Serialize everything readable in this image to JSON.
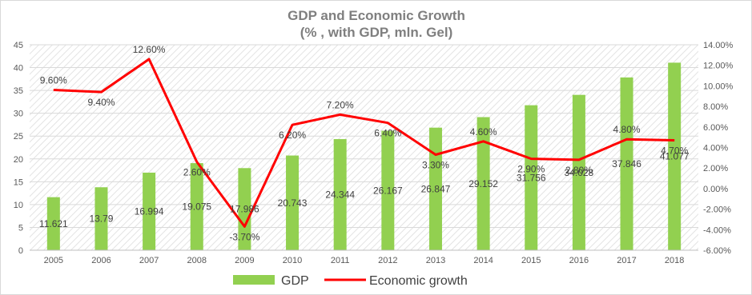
{
  "chart_data": {
    "type": "bar+line",
    "title_lines": [
      "GDP and Economic Growth",
      "(% , with GDP, mln. Gel)"
    ],
    "xlabel": "",
    "ylabel": "",
    "categories": [
      "2005",
      "2006",
      "2007",
      "2008",
      "2009",
      "2010",
      "2011",
      "2012",
      "2013",
      "2014",
      "2015",
      "2016",
      "2017",
      "2018"
    ],
    "series": [
      {
        "name": "GDP",
        "type": "bar",
        "axis": "left",
        "color": "#92d050",
        "values": [
          11.621,
          13.79,
          16.994,
          19.075,
          17.986,
          20.743,
          24.344,
          26.167,
          26.847,
          29.152,
          31.756,
          34.028,
          37.846,
          41.077
        ],
        "labels": [
          "11.621",
          "13.79",
          "16.994",
          "19.075",
          "17.986",
          "20.743",
          "24.344",
          "26.167",
          "26.847",
          "29.152",
          "31.756",
          "34.028",
          "37.846",
          "41.077"
        ]
      },
      {
        "name": "Economic growth",
        "type": "line",
        "axis": "right",
        "color": "#ff0000",
        "values": [
          9.6,
          9.4,
          12.6,
          2.6,
          -3.7,
          6.2,
          7.2,
          6.4,
          3.3,
          4.6,
          2.9,
          2.8,
          4.8,
          4.7
        ],
        "labels": [
          "9.60%",
          "9.40%",
          "12.60%",
          "2.60%",
          "-3.70%",
          "6.20%",
          "7.20%",
          "6.40%",
          "3.30%",
          "4.60%",
          "2.90%",
          "2.80%",
          "4.80%",
          "4.70%"
        ]
      }
    ],
    "y_left": {
      "range": [
        0,
        45
      ],
      "ticks": [
        0,
        5,
        10,
        15,
        20,
        25,
        30,
        35,
        40,
        45
      ],
      "tick_labels": [
        "0",
        "5",
        "10",
        "15",
        "20",
        "25",
        "30",
        "35",
        "40",
        "45"
      ]
    },
    "y_right": {
      "range": [
        -6,
        14
      ],
      "ticks": [
        -6,
        -4,
        -2,
        0,
        2,
        4,
        6,
        8,
        10,
        12,
        14
      ],
      "tick_labels": [
        "-6.00%",
        "-4.00%",
        "-2.00%",
        "0.00%",
        "2.00%",
        "4.00%",
        "6.00%",
        "8.00%",
        "10.00%",
        "12.00%",
        "14.00%"
      ]
    },
    "plot_background": "hatched",
    "gridlines": true,
    "legend": {
      "position": "bottom",
      "entries": [
        "GDP",
        "Economic growth"
      ]
    }
  }
}
